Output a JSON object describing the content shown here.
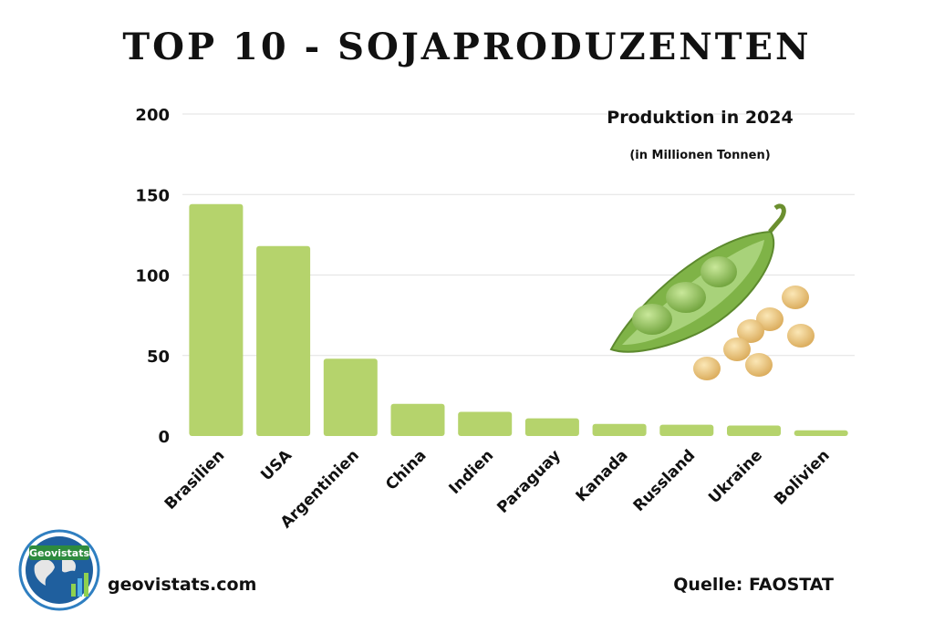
{
  "page": {
    "title": "TOP 10 - SOJAPRODUZENTEN"
  },
  "chart_data": {
    "type": "bar",
    "title": "Produktion in 2024",
    "subtitle": "(in Millionen Tonnen)",
    "categories": [
      "Brasilien",
      "USA",
      "Argentinien",
      "China",
      "Indien",
      "Paraguay",
      "Kanada",
      "Russland",
      "Ukraine",
      "Bolivien"
    ],
    "values": [
      144,
      118,
      48,
      20,
      15,
      11,
      7.5,
      7,
      6.5,
      3.5
    ],
    "ylim": [
      0,
      200
    ],
    "yticks": [
      0,
      50,
      100,
      150,
      200
    ],
    "grid": true,
    "bar_color": "#b5d36c"
  },
  "footer": {
    "logo_text": "Geovistats",
    "website": "geovistats.com",
    "source": "Quelle: FAOSTAT"
  },
  "illustration": {
    "icon": "soybean-pod-icon"
  }
}
